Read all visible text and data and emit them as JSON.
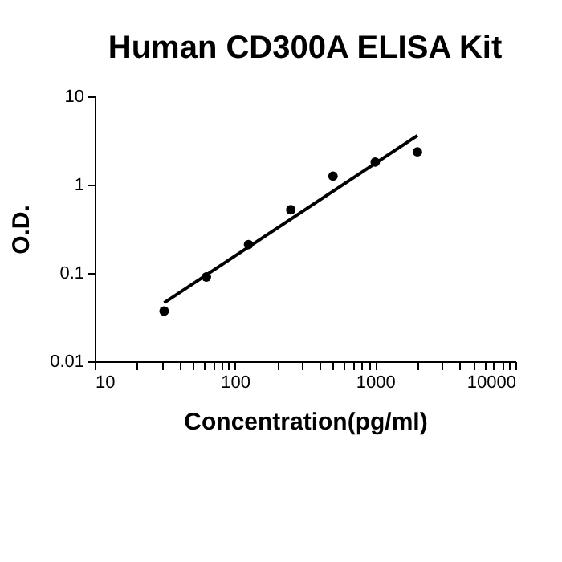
{
  "chart_data": {
    "type": "scatter",
    "title": "Human CD300A ELISA Kit",
    "xlabel": "Concentration(pg/ml)",
    "ylabel": "O.D.",
    "log": "xy",
    "grid": false,
    "x": [
      31.25,
      62.5,
      125,
      250,
      500,
      1000,
      2000
    ],
    "series": [
      {
        "color": "#000000",
        "marker": "circle",
        "values": [
          0.037,
          0.09,
          0.21,
          0.52,
          1.25,
          1.8,
          2.35
        ]
      },
      {
        "type": "line",
        "color": "#000000",
        "line_style": "solid",
        "x": [
          31.25,
          2000
        ],
        "values": [
          0.046,
          3.6
        ]
      }
    ],
    "xlim": [
      10,
      10000
    ],
    "ylim": [
      0.01,
      10
    ],
    "xticks": [
      10,
      {
        "value": 20,
        "label": null
      },
      {
        "value": 30,
        "label": null
      },
      {
        "value": 40,
        "label": null
      },
      {
        "value": 50,
        "label": null
      },
      {
        "value": 60,
        "label": null
      },
      {
        "value": 70,
        "label": null
      },
      {
        "value": 80,
        "label": null
      },
      {
        "value": 90,
        "label": null
      },
      100,
      {
        "value": 200,
        "label": null
      },
      {
        "value": 300,
        "label": null
      },
      {
        "value": 400,
        "label": null
      },
      {
        "value": 500,
        "label": null
      },
      {
        "value": 600,
        "label": null
      },
      {
        "value": 700,
        "label": null
      },
      {
        "value": 800,
        "label": null
      },
      {
        "value": 900,
        "label": null
      },
      1000,
      {
        "value": 2000,
        "label": null
      },
      {
        "value": 3000,
        "label": null
      },
      {
        "value": 4000,
        "label": null
      },
      {
        "value": 5000,
        "label": null
      },
      {
        "value": 6000,
        "label": null
      },
      {
        "value": 7000,
        "label": null
      },
      {
        "value": 8000,
        "label": null
      },
      {
        "value": 9000,
        "label": null
      },
      10000
    ],
    "yticks": [
      0.01,
      0.1,
      1,
      10
    ]
  }
}
